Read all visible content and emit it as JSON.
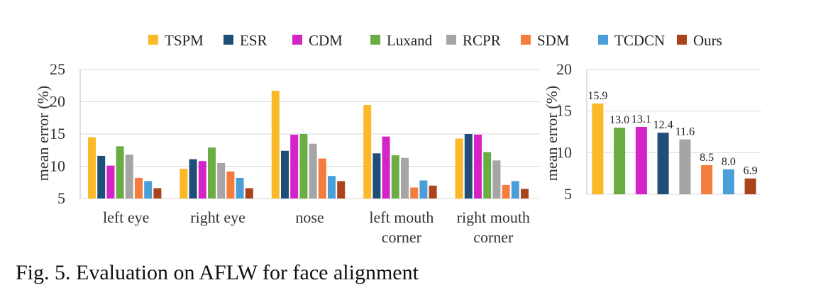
{
  "caption": "Fig. 5. Evaluation on AFLW for face alignment",
  "legend": {
    "position": "top",
    "entries": [
      {
        "name": "TSPM",
        "color": "#FBB829"
      },
      {
        "name": "ESR",
        "color": "#1F4E79"
      },
      {
        "name": "CDM",
        "color": "#D424C8"
      },
      {
        "name": "Luxand",
        "color": "#6AAD45"
      },
      {
        "name": "RCPR",
        "color": "#A5A5A5"
      },
      {
        "name": "SDM",
        "color": "#F47C3C"
      },
      {
        "name": "TCDCN",
        "color": "#4A9FD8"
      },
      {
        "name": "Ours",
        "color": "#A9441C"
      }
    ]
  },
  "chart_data": [
    {
      "type": "bar",
      "ylabel": "mean error (%)",
      "ylim": [
        5,
        25
      ],
      "yticks": [
        5,
        10,
        15,
        20,
        25
      ],
      "grid": true,
      "categories": [
        [
          "left eye"
        ],
        [
          "right eye"
        ],
        [
          "nose"
        ],
        [
          "left mouth",
          "corner"
        ],
        [
          "right mouth",
          "corner"
        ]
      ],
      "series": [
        {
          "name": "TSPM",
          "color": "#FBB829",
          "values": [
            14.5,
            9.6,
            21.7,
            19.5,
            14.3
          ]
        },
        {
          "name": "ESR",
          "color": "#1F4E79",
          "values": [
            11.6,
            11.1,
            12.4,
            12.0,
            15.0
          ]
        },
        {
          "name": "CDM",
          "color": "#D424C8",
          "values": [
            10.1,
            10.8,
            14.9,
            14.6,
            14.9
          ]
        },
        {
          "name": "Luxand",
          "color": "#6AAD45",
          "values": [
            13.1,
            12.9,
            15.0,
            11.7,
            12.2
          ]
        },
        {
          "name": "RCPR",
          "color": "#A5A5A5",
          "values": [
            11.8,
            10.5,
            13.5,
            11.3,
            10.9
          ]
        },
        {
          "name": "SDM",
          "color": "#F47C3C",
          "values": [
            8.2,
            9.2,
            11.2,
            6.7,
            7.1
          ]
        },
        {
          "name": "TCDCN",
          "color": "#4A9FD8",
          "values": [
            7.7,
            8.2,
            8.5,
            7.8,
            7.7
          ]
        },
        {
          "name": "Ours",
          "color": "#A9441C",
          "values": [
            6.6,
            6.6,
            7.7,
            7.0,
            6.5
          ]
        }
      ]
    },
    {
      "type": "bar",
      "ylabel": "mean error (%)",
      "ylim": [
        5,
        20
      ],
      "yticks": [
        5,
        10,
        15,
        20
      ],
      "grid": true,
      "categories": [
        "TSPM",
        "Luxand",
        "CDM",
        "ESR",
        "RCPR",
        "SDM",
        "TCDCN",
        "Ours"
      ],
      "colors": [
        "#FBB829",
        "#6AAD45",
        "#D424C8",
        "#1F4E79",
        "#A5A5A5",
        "#F47C3C",
        "#4A9FD8",
        "#A9441C"
      ],
      "values": [
        15.9,
        13.0,
        13.1,
        12.4,
        11.6,
        8.5,
        8.0,
        6.9
      ],
      "data_labels": [
        "15.9",
        "13.0",
        "13.1",
        "12.4",
        "11.6",
        "8.5",
        "8.0",
        "6.9"
      ]
    }
  ]
}
